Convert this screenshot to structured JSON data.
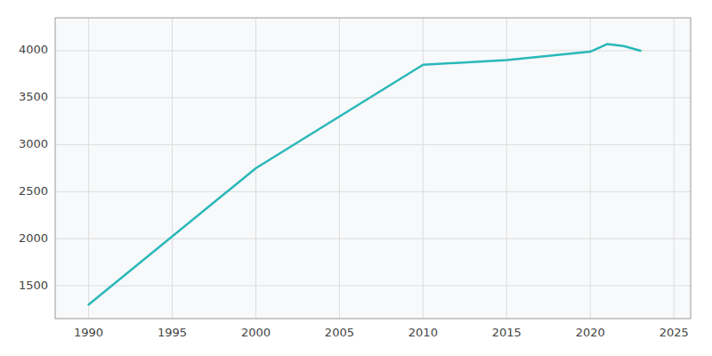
{
  "chart_data": {
    "type": "line",
    "x": [
      1990,
      2000,
      2010,
      2015,
      2020,
      2021,
      2022,
      2023
    ],
    "values": [
      1300,
      2750,
      3850,
      3900,
      3990,
      4070,
      4050,
      4000
    ],
    "color": "#2ab8b8",
    "xlim": [
      1988,
      2026
    ],
    "ylim": [
      1150,
      4350
    ],
    "xticks": [
      1990,
      1995,
      2000,
      2005,
      2010,
      2015,
      2020,
      2025
    ],
    "yticks": [
      1500,
      2000,
      2500,
      3000,
      3500,
      4000
    ],
    "grid": true
  }
}
